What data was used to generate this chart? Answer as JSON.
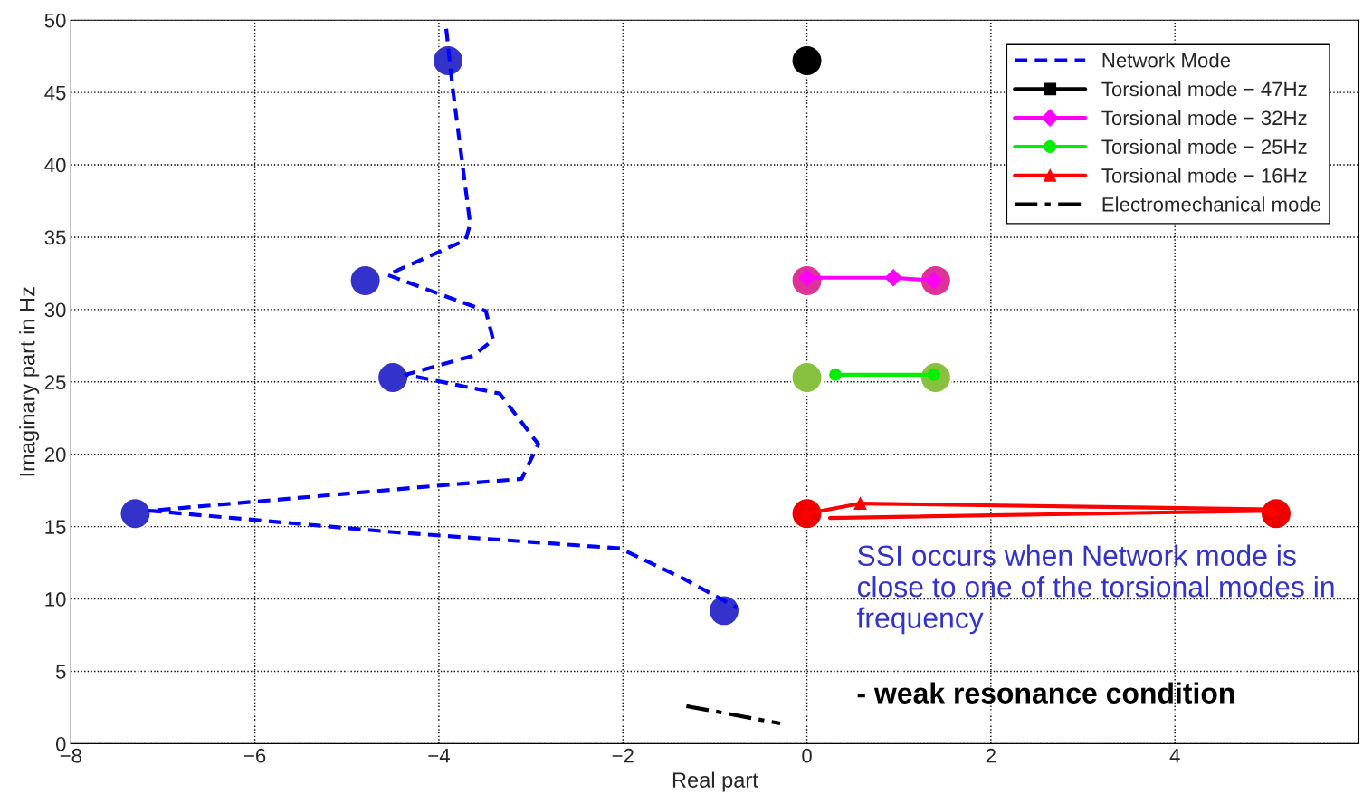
{
  "chart_data": {
    "type": "line",
    "xlabel": "Real part",
    "ylabel": "Imaginary part in Hz",
    "xlim": [
      -8,
      6
    ],
    "ylim": [
      0,
      50
    ],
    "xticks": [
      {
        "value": -8,
        "label": "−8"
      },
      {
        "value": -6,
        "label": "−6"
      },
      {
        "value": -4,
        "label": "−4"
      },
      {
        "value": -2,
        "label": "−2"
      },
      0,
      2,
      4
    ],
    "yticks": [
      0,
      5,
      10,
      15,
      20,
      25,
      30,
      35,
      40,
      45,
      50
    ],
    "grid": true,
    "legend": "top right",
    "series": [
      {
        "name": "Network Mode",
        "color": "#0000ff",
        "line_style": "dashed",
        "marker": "none",
        "x": [
          -3.92,
          -3.85,
          -3.66,
          -3.71,
          -4.56,
          -3.49,
          -3.41,
          -3.63,
          -4.36,
          -3.34,
          -2.92,
          -3.1,
          -3.88,
          -7.14,
          -4.46,
          -2.03,
          -1.34,
          -0.76
        ],
        "values": [
          49.4,
          45.3,
          35.9,
          34.8,
          32.4,
          29.9,
          27.9,
          26.8,
          25.5,
          24.2,
          20.7,
          18.3,
          17.9,
          16.1,
          14.6,
          13.5,
          11.4,
          9.4
        ]
      },
      {
        "name": "Torsional mode − 47Hz",
        "color": "#000000",
        "line_style": "solid",
        "marker": "square"
      },
      {
        "name": "Torsional mode − 32Hz",
        "color": "#ff00ff",
        "line_style": "solid",
        "marker": "diamond",
        "x": [
          0,
          0.94,
          1.38
        ],
        "values": [
          32.2,
          32.2,
          32
        ]
      },
      {
        "name": "Torsional mode − 25Hz",
        "color": "#00ee00",
        "line_style": "solid",
        "marker": "circle",
        "x": [
          0.31,
          1.38
        ],
        "values": [
          25.5,
          25.5
        ]
      },
      {
        "name": "Torsional mode − 16Hz",
        "color": "#ff0000",
        "line_style": "solid",
        "marker": "triangle",
        "x": [
          0,
          0.58,
          5.06
        ],
        "values": [
          15.9,
          16.6,
          16.2
        ]
      },
      {
        "color": "#ff0000",
        "line_style": "solid",
        "marker": "none",
        "x": [
          0.25,
          5.06
        ],
        "values": [
          15.6,
          16.1
        ]
      },
      {
        "name": "Electromechanical mode",
        "color": "#000000",
        "line_style": "dashdot",
        "marker": "none",
        "x": [
          -1.31,
          -0.29
        ],
        "values": [
          2.6,
          1.4
        ]
      },
      {
        "type": "scatter",
        "x": [
          -3.9,
          -4.8,
          -4.5,
          -7.3,
          -0.9,
          0,
          0,
          1.4,
          0,
          1.4,
          0,
          5.1
        ],
        "values": [
          47.2,
          32,
          25.3,
          15.9,
          9.2,
          47.2,
          32,
          32,
          25.3,
          25.3,
          15.9,
          15.9
        ],
        "colors": [
          "#3333cc",
          "#3333cc",
          "#3333cc",
          "#3333cc",
          "#3333cc",
          "#000000",
          "#dd3399",
          "#dd3399",
          "#88c040",
          "#88c040",
          "#ee0000",
          "#ee0000"
        ]
      }
    ],
    "annotations": [
      "SSI occurs when Network mode is close to one of the torsional modes in frequency",
      "- weak resonance condition"
    ]
  }
}
